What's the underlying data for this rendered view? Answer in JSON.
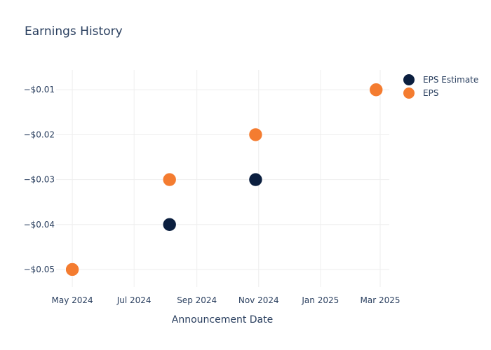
{
  "chart_data": {
    "type": "scatter",
    "title": "Earnings History",
    "xlabel": "Announcement Date",
    "ylabel": "",
    "x_range": [
      "2024-04-15",
      "2025-03-10"
    ],
    "y_range": [
      -0.0539,
      -0.0056
    ],
    "x_ticks": [
      {
        "date": "2024-05-01",
        "label": "May 2024"
      },
      {
        "date": "2024-07-01",
        "label": "Jul 2024"
      },
      {
        "date": "2024-09-01",
        "label": "Sep 2024"
      },
      {
        "date": "2024-11-01",
        "label": "Nov 2024"
      },
      {
        "date": "2025-01-01",
        "label": "Jan 2025"
      },
      {
        "date": "2025-03-01",
        "label": "Mar 2025"
      }
    ],
    "y_ticks": [
      {
        "value": -0.05,
        "label": "−$0.05"
      },
      {
        "value": -0.04,
        "label": "−$0.04"
      },
      {
        "value": -0.03,
        "label": "−$0.03"
      },
      {
        "value": -0.02,
        "label": "−$0.02"
      },
      {
        "value": -0.01,
        "label": "−$0.01"
      }
    ],
    "grid": true,
    "legend_position": "top-right",
    "series": [
      {
        "name": "EPS Estimate",
        "color": "#0b1f3f",
        "points": [
          {
            "x": "2024-05-01",
            "y": -0.05
          },
          {
            "x": "2024-08-05",
            "y": -0.04
          },
          {
            "x": "2024-10-29",
            "y": -0.03
          },
          {
            "x": "2025-02-25",
            "y": -0.01
          }
        ]
      },
      {
        "name": "EPS",
        "color": "#f47c30",
        "points": [
          {
            "x": "2024-05-01",
            "y": -0.05
          },
          {
            "x": "2024-08-05",
            "y": -0.03
          },
          {
            "x": "2024-10-29",
            "y": -0.02
          },
          {
            "x": "2025-02-25",
            "y": -0.01
          }
        ]
      }
    ]
  }
}
